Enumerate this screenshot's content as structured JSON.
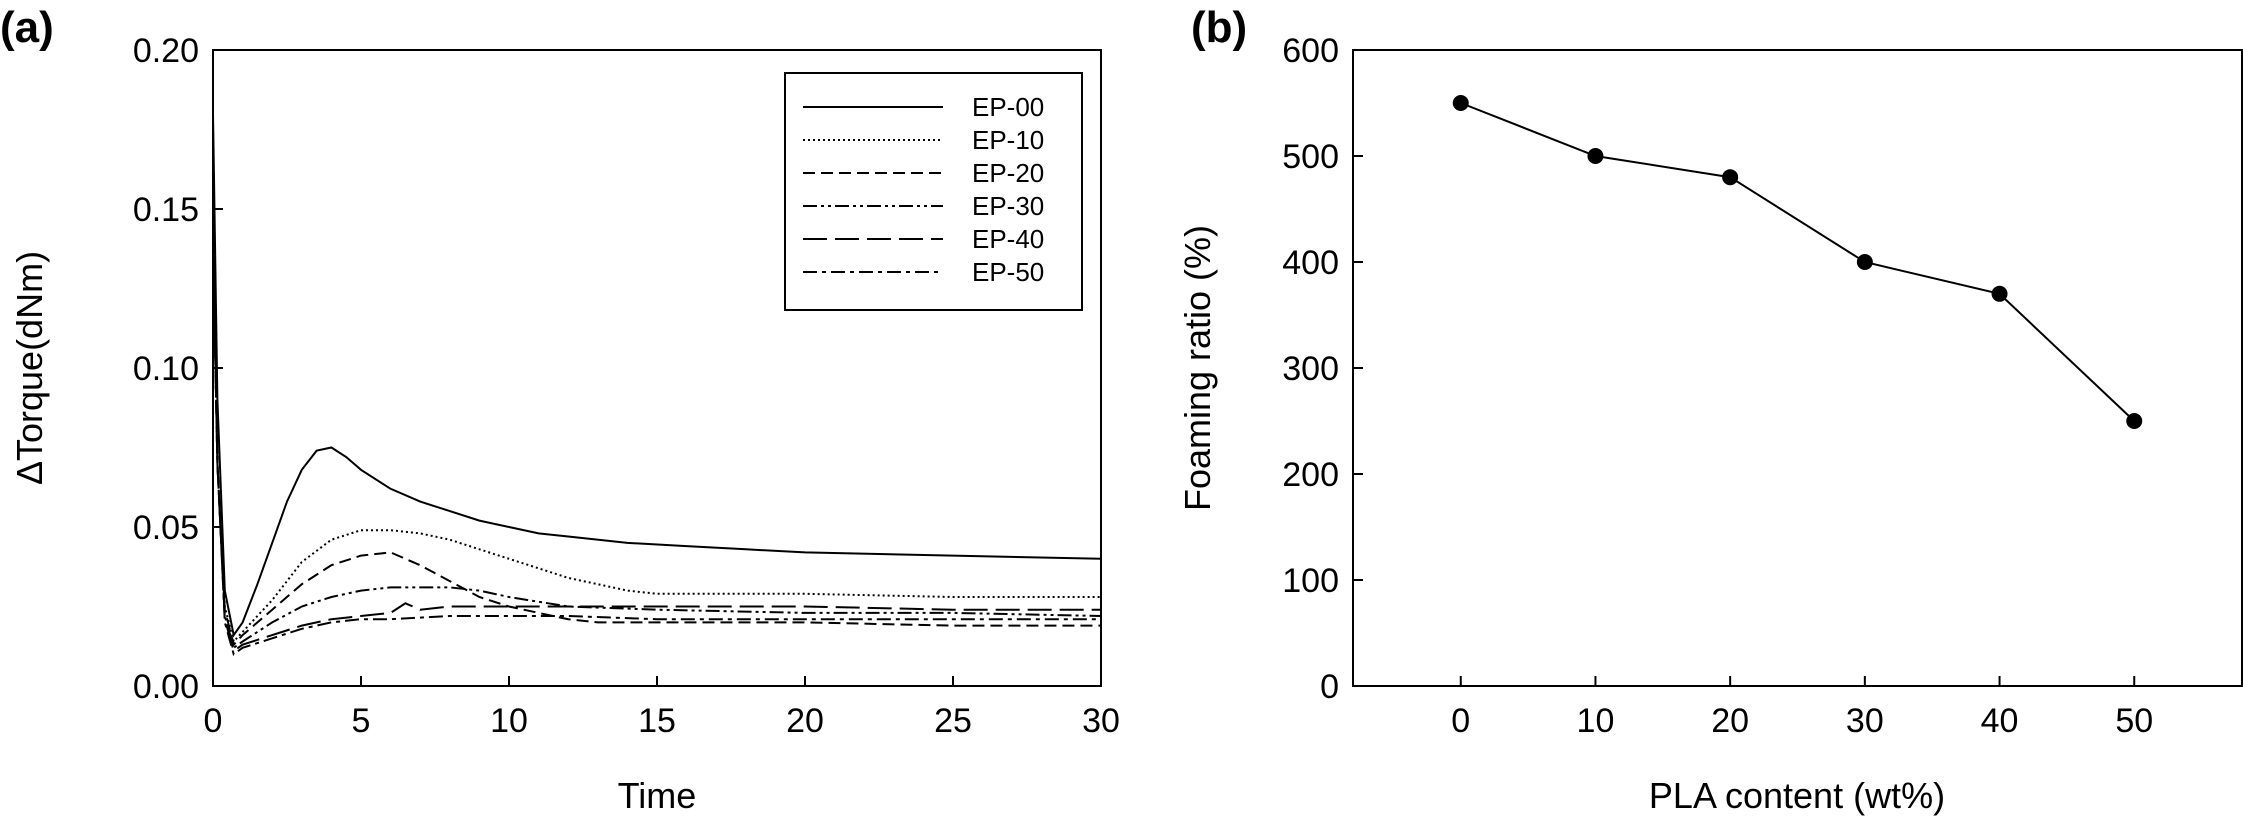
{
  "chart_data": [
    {
      "panel_label": "(a)",
      "type": "line",
      "xlabel": "Time",
      "ylabel": "ΔTorque(dNm)",
      "xlim": [
        0,
        30
      ],
      "ylim": [
        0.0,
        0.2
      ],
      "x_ticks": [
        "0",
        "5",
        "10",
        "15",
        "20",
        "25",
        "30"
      ],
      "y_ticks": [
        "0.00",
        "0.05",
        "0.10",
        "0.15",
        "0.20"
      ],
      "grid": false,
      "legend_position": "top-right",
      "series": [
        {
          "name": "EP-00",
          "dash": "solid",
          "x": [
            0,
            0.15,
            0.4,
            0.7,
            1.0,
            1.5,
            2.0,
            2.5,
            3.0,
            3.5,
            4.0,
            4.5,
            5.0,
            6.0,
            7.0,
            8.0,
            9.0,
            10.0,
            11.0,
            12.0,
            14.0,
            16.0,
            18.0,
            20.0,
            25.0,
            30.0
          ],
          "y": [
            0.18,
            0.09,
            0.03,
            0.016,
            0.02,
            0.032,
            0.045,
            0.058,
            0.068,
            0.074,
            0.075,
            0.072,
            0.068,
            0.062,
            0.058,
            0.055,
            0.052,
            0.05,
            0.048,
            0.047,
            0.045,
            0.044,
            0.043,
            0.042,
            0.041,
            0.04
          ]
        },
        {
          "name": "EP-10",
          "dash": "dotted",
          "x": [
            0,
            0.15,
            0.4,
            0.7,
            1.0,
            2.0,
            3.0,
            4.0,
            5.0,
            6.0,
            7.0,
            8.0,
            9.0,
            10.0,
            11.0,
            12.0,
            13.0,
            14.0,
            15.0,
            16.0,
            20.0,
            25.0,
            30.0
          ],
          "y": [
            0.14,
            0.07,
            0.025,
            0.014,
            0.017,
            0.027,
            0.039,
            0.046,
            0.049,
            0.049,
            0.048,
            0.046,
            0.043,
            0.04,
            0.037,
            0.034,
            0.032,
            0.03,
            0.029,
            0.029,
            0.029,
            0.028,
            0.028
          ]
        },
        {
          "name": "EP-20",
          "dash": "dashed",
          "x": [
            0,
            0.15,
            0.4,
            0.7,
            1.0,
            2.0,
            3.0,
            4.0,
            5.0,
            6.0,
            7.0,
            8.0,
            9.0,
            10.0,
            11.0,
            12.0,
            13.0,
            14.0,
            15.0,
            20.0,
            25.0,
            30.0
          ],
          "y": [
            0.14,
            0.07,
            0.024,
            0.013,
            0.016,
            0.024,
            0.032,
            0.038,
            0.041,
            0.042,
            0.038,
            0.033,
            0.028,
            0.025,
            0.023,
            0.021,
            0.02,
            0.02,
            0.02,
            0.02,
            0.019,
            0.019
          ]
        },
        {
          "name": "EP-30",
          "dash": "dash-dot-dot",
          "x": [
            0,
            0.15,
            0.4,
            0.7,
            1.0,
            2.0,
            3.0,
            4.0,
            5.0,
            6.0,
            7.0,
            8.0,
            9.0,
            10.0,
            12.0,
            15.0,
            20.0,
            25.0,
            30.0
          ],
          "y": [
            0.14,
            0.07,
            0.022,
            0.012,
            0.014,
            0.02,
            0.025,
            0.028,
            0.03,
            0.031,
            0.031,
            0.031,
            0.03,
            0.028,
            0.025,
            0.024,
            0.023,
            0.023,
            0.022
          ]
        },
        {
          "name": "EP-40",
          "dash": "long-dash",
          "x": [
            0,
            0.15,
            0.4,
            0.7,
            1.0,
            2.0,
            3.0,
            4.0,
            5.0,
            6.0,
            6.5,
            7.0,
            8.0,
            10.0,
            12.0,
            15.0,
            20.0,
            25.0,
            30.0
          ],
          "y": [
            0.14,
            0.07,
            0.021,
            0.011,
            0.013,
            0.016,
            0.019,
            0.021,
            0.022,
            0.023,
            0.026,
            0.024,
            0.025,
            0.025,
            0.025,
            0.025,
            0.025,
            0.024,
            0.024
          ]
        },
        {
          "name": "EP-50",
          "dash": "dash-dot",
          "x": [
            0,
            0.15,
            0.4,
            0.7,
            1.0,
            2.0,
            3.0,
            4.0,
            5.0,
            6.0,
            8.0,
            10.0,
            12.0,
            15.0,
            20.0,
            25.0,
            30.0
          ],
          "y": [
            0.14,
            0.07,
            0.02,
            0.01,
            0.012,
            0.015,
            0.018,
            0.02,
            0.021,
            0.021,
            0.022,
            0.022,
            0.022,
            0.021,
            0.021,
            0.021,
            0.021
          ]
        }
      ]
    },
    {
      "panel_label": "(b)",
      "type": "line",
      "xlabel": "PLA content (wt%)",
      "ylabel": "Foaming ratio (%)",
      "xlim": [
        -8,
        58
      ],
      "ylim": [
        0,
        600
      ],
      "x_ticks": [
        "0",
        "10",
        "20",
        "30",
        "40",
        "50"
      ],
      "y_ticks": [
        "0",
        "100",
        "200",
        "300",
        "400",
        "500",
        "600"
      ],
      "grid": false,
      "markers": "filled-circle",
      "series": [
        {
          "name": "",
          "x": [
            0,
            10,
            20,
            30,
            40,
            50
          ],
          "y": [
            550,
            500,
            480,
            400,
            370,
            250
          ]
        }
      ]
    }
  ]
}
